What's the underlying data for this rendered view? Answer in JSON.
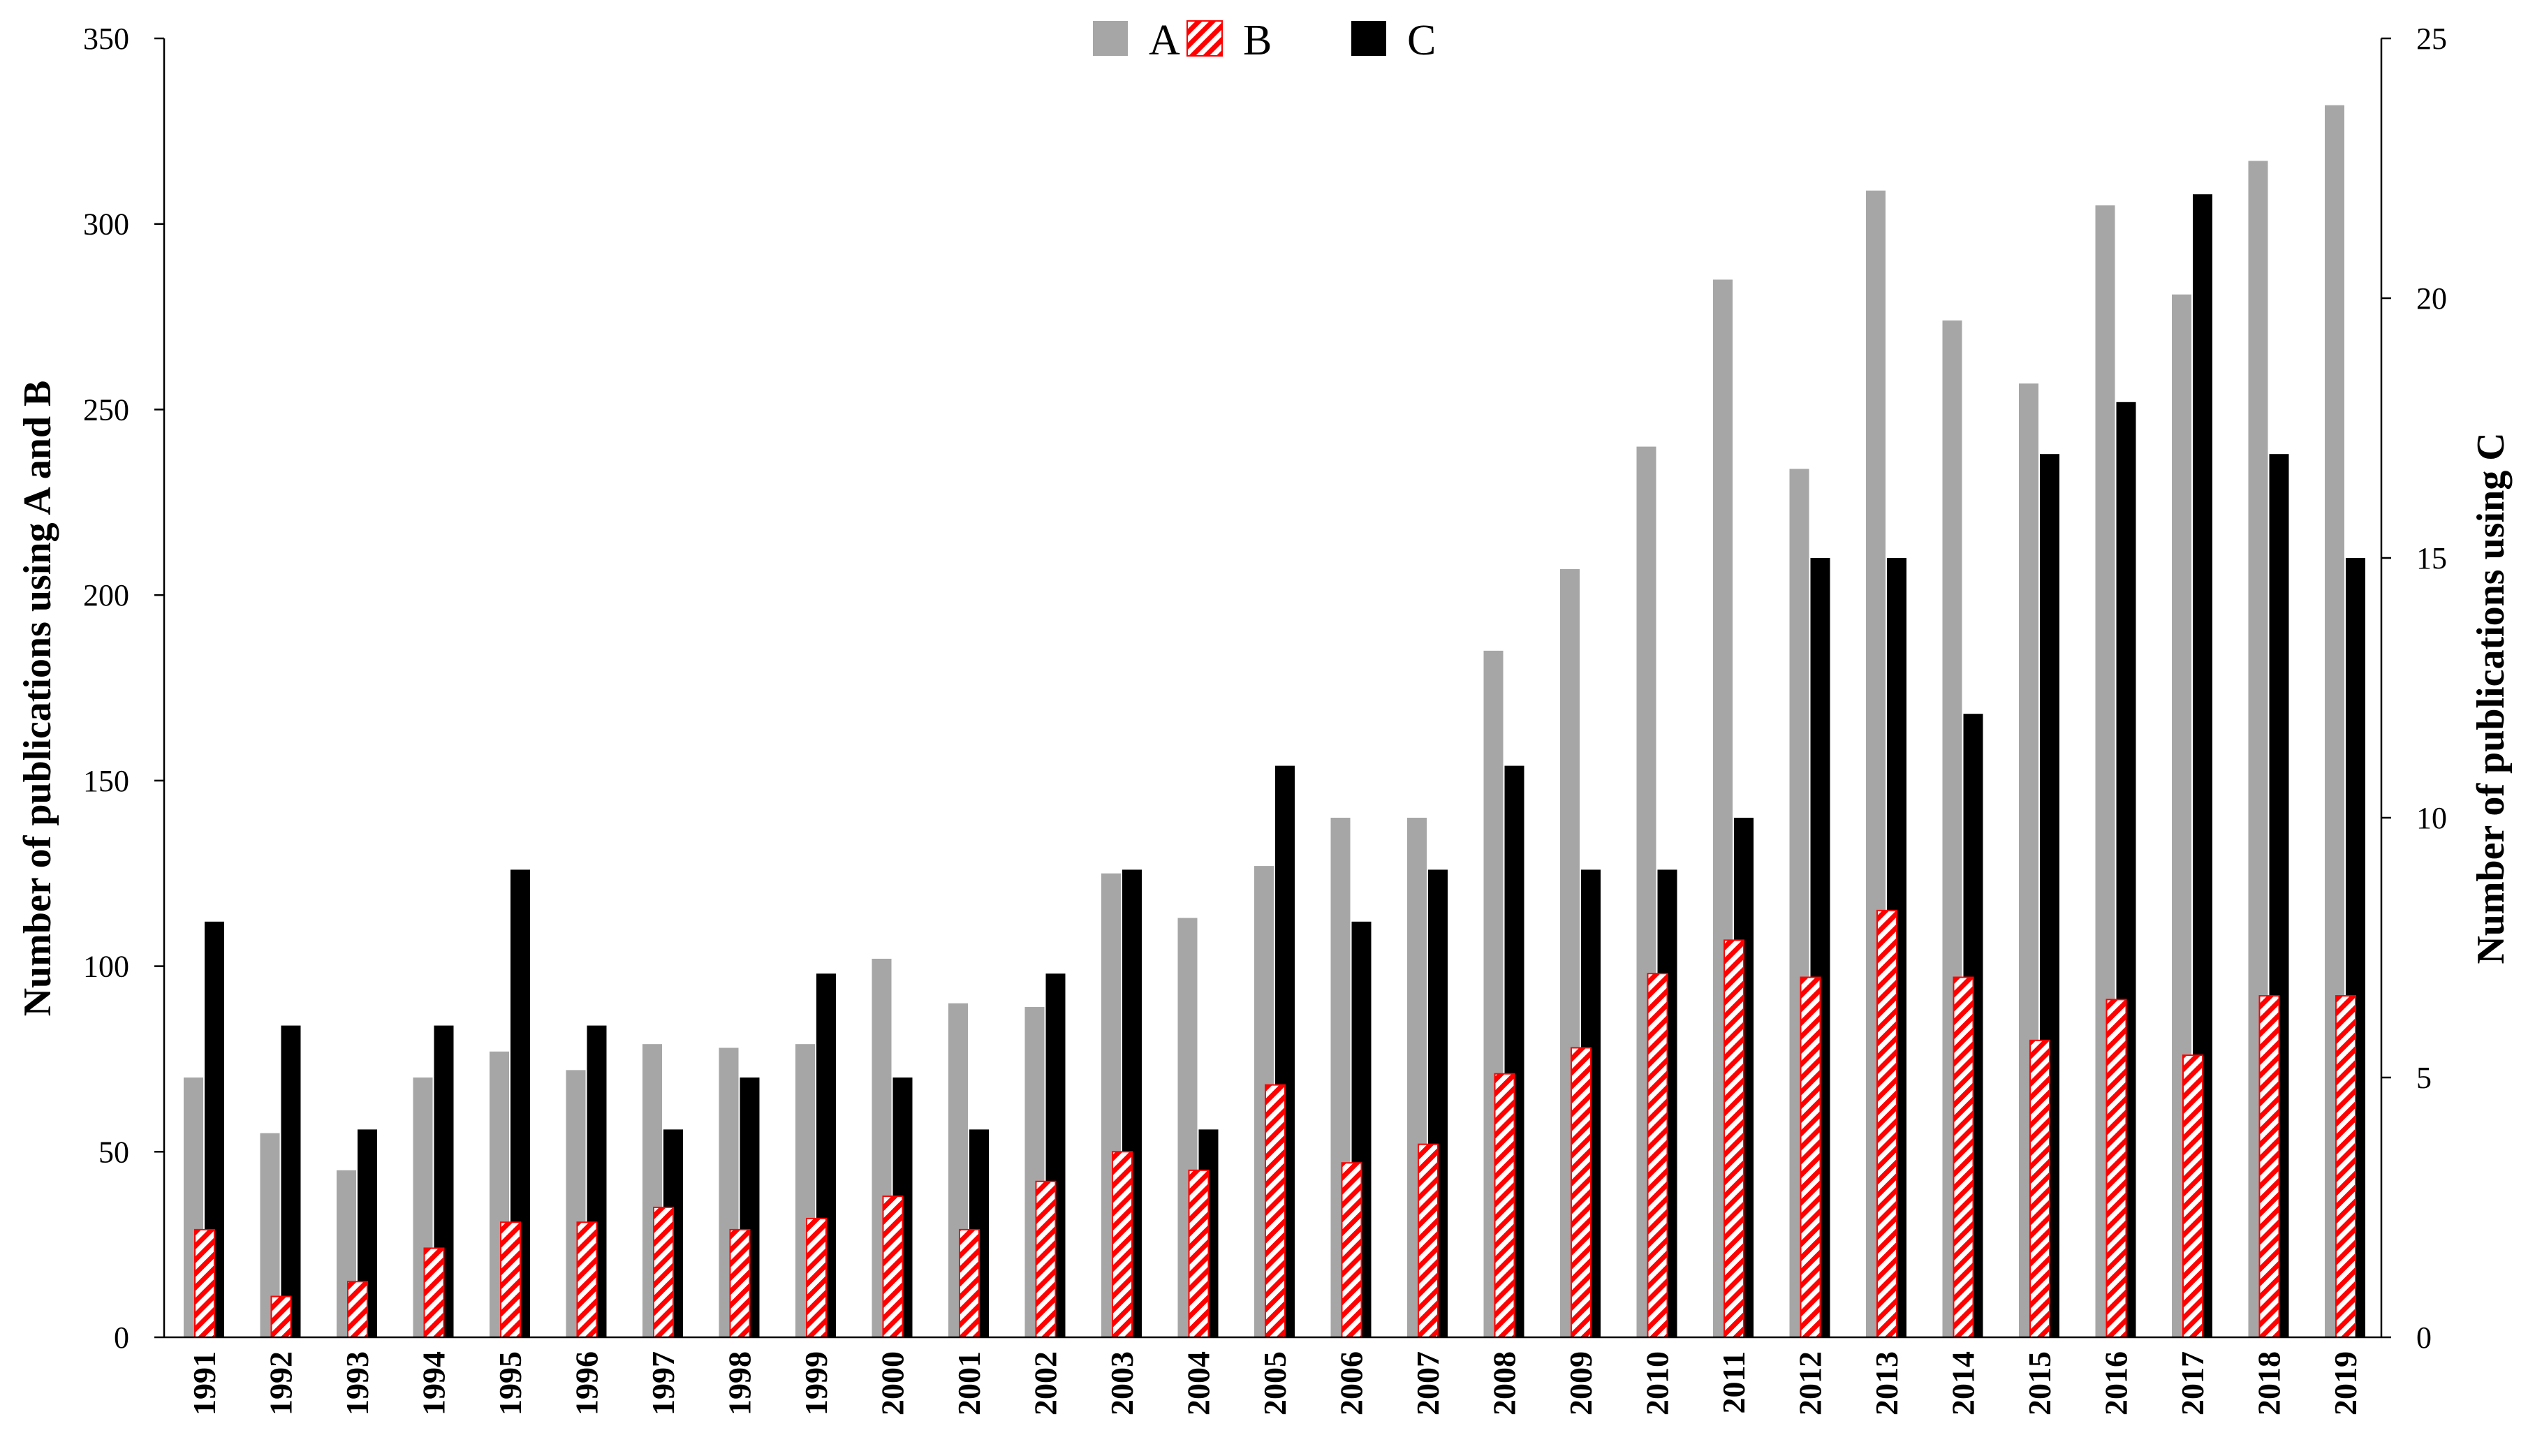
{
  "chart_data": {
    "type": "bar",
    "categories": [
      "1991",
      "1992",
      "1993",
      "1994",
      "1995",
      "1996",
      "1997",
      "1998",
      "1999",
      "2000",
      "2001",
      "2002",
      "2003",
      "2004",
      "2005",
      "2006",
      "2007",
      "2008",
      "2009",
      "2010",
      "2011",
      "2012",
      "2013",
      "2014",
      "2015",
      "2016",
      "2017",
      "2018",
      "2019"
    ],
    "series": [
      {
        "name": "A",
        "axis": "left",
        "style": "solid",
        "color": "#a6a6a6",
        "values": [
          70,
          55,
          45,
          70,
          77,
          72,
          79,
          78,
          79,
          102,
          90,
          89,
          125,
          113,
          127,
          140,
          140,
          185,
          207,
          240,
          285,
          234,
          309,
          274,
          257,
          305,
          281,
          317,
          332
        ]
      },
      {
        "name": "B",
        "axis": "left",
        "style": "red-white-diagonal-hatch",
        "color": "#ff0000",
        "values": [
          29,
          11,
          15,
          24,
          31,
          31,
          35,
          29,
          32,
          38,
          29,
          42,
          50,
          45,
          68,
          47,
          52,
          71,
          78,
          98,
          107,
          97,
          115,
          97,
          80,
          91,
          76,
          92,
          92
        ]
      },
      {
        "name": "C",
        "axis": "right",
        "style": "solid",
        "color": "#000000",
        "values": [
          8,
          6,
          4,
          6,
          9,
          6,
          4,
          5,
          7,
          5,
          4,
          7,
          9,
          4,
          11,
          8,
          9,
          11,
          9,
          9,
          10,
          15,
          15,
          12,
          17,
          18,
          22,
          17,
          15
        ]
      }
    ],
    "ylabel": "Number of publications using A and B",
    "y2label": "Number of publications using C",
    "ylim": [
      0,
      350
    ],
    "y2lim": [
      0,
      25
    ],
    "yticks": [
      "0",
      "50",
      "100",
      "150",
      "200",
      "250",
      "300",
      "350"
    ],
    "y2ticks": [
      "0",
      "5",
      "10",
      "15",
      "20",
      "25"
    ],
    "legend": {
      "position": "top-center",
      "entries": [
        "A",
        "B",
        "C"
      ]
    },
    "grid": false
  }
}
